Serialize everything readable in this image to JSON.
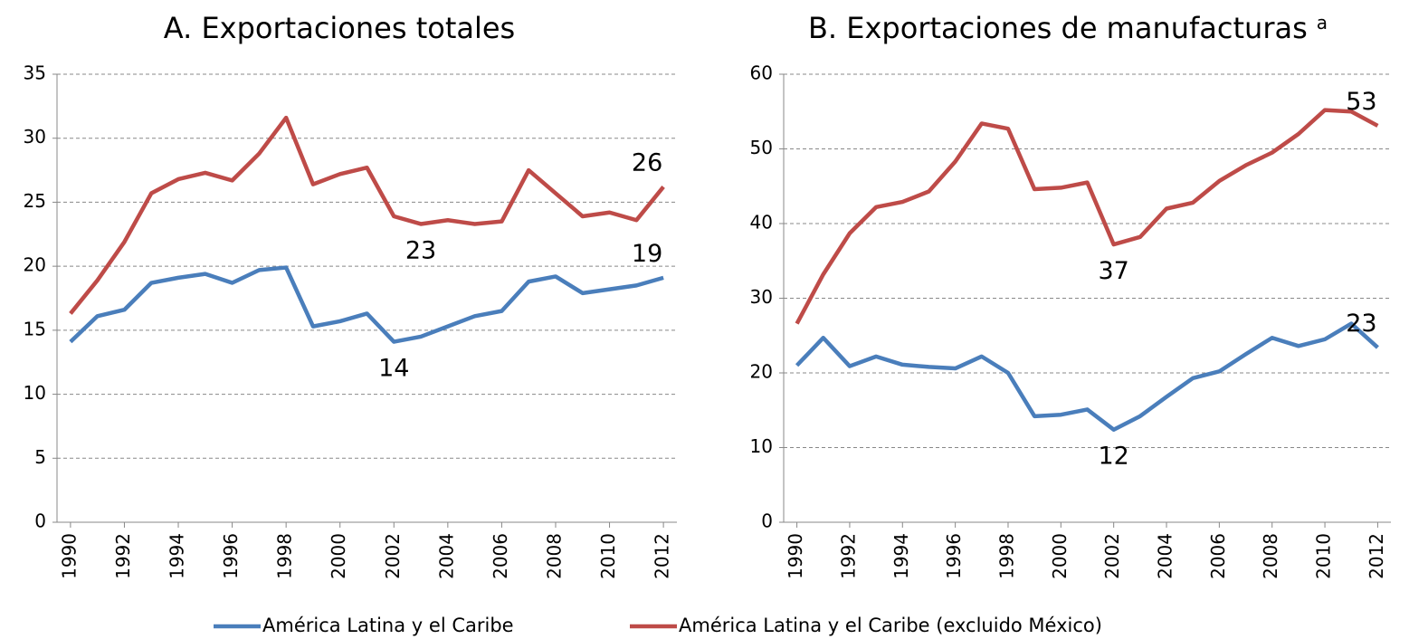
{
  "chart_data": [
    {
      "type": "line",
      "title": "A. Exportaciones totales",
      "x": [
        1990,
        1991,
        1992,
        1993,
        1994,
        1995,
        1996,
        1997,
        1998,
        1999,
        2000,
        2001,
        2002,
        2003,
        2004,
        2005,
        2006,
        2007,
        2008,
        2009,
        2010,
        2011,
        2012
      ],
      "xlim": [
        1989.5,
        2012.5
      ],
      "xticks": [
        1990,
        1992,
        1994,
        1996,
        1998,
        2000,
        2002,
        2004,
        2006,
        2008,
        2010,
        2012
      ],
      "ylim": [
        0,
        35
      ],
      "yticks": [
        0,
        5,
        10,
        15,
        20,
        25,
        30,
        35
      ],
      "grid": true,
      "legend": "bottom",
      "series": [
        {
          "name": "América Latina y el Caribe",
          "color": "#4a7ebb",
          "values": [
            14.1,
            16.1,
            16.6,
            18.7,
            19.1,
            19.4,
            18.7,
            19.7,
            19.9,
            15.3,
            15.7,
            16.3,
            14.1,
            14.5,
            15.3,
            16.1,
            16.5,
            18.8,
            19.2,
            17.9,
            18.2,
            18.5,
            19.1
          ],
          "value_labels": [
            null,
            null,
            null,
            null,
            null,
            null,
            null,
            null,
            null,
            null,
            null,
            null,
            "14",
            null,
            null,
            null,
            null,
            null,
            null,
            null,
            null,
            null,
            "19"
          ]
        },
        {
          "name": "América Latina y el Caribe (excluido México)",
          "color": "#be4b48",
          "values": [
            16.3,
            18.9,
            21.9,
            25.7,
            26.8,
            27.3,
            26.7,
            28.8,
            31.6,
            26.4,
            27.2,
            27.7,
            23.9,
            23.3,
            23.6,
            23.3,
            23.5,
            27.5,
            25.7,
            23.9,
            24.2,
            23.6,
            26.2
          ],
          "value_labels": [
            null,
            null,
            null,
            null,
            null,
            null,
            null,
            null,
            null,
            null,
            null,
            null,
            null,
            "23",
            null,
            null,
            null,
            null,
            null,
            null,
            null,
            null,
            "26"
          ]
        }
      ]
    },
    {
      "type": "line",
      "title": "B. Exportaciones de manufacturas",
      "title_note": "a",
      "x": [
        1990,
        1991,
        1992,
        1993,
        1994,
        1995,
        1996,
        1997,
        1998,
        1999,
        2000,
        2001,
        2002,
        2003,
        2004,
        2005,
        2006,
        2007,
        2008,
        2009,
        2010,
        2011,
        2012
      ],
      "xlim": [
        1989.5,
        2012.5
      ],
      "xticks": [
        1990,
        1992,
        1994,
        1996,
        1998,
        2000,
        2002,
        2004,
        2006,
        2008,
        2010,
        2012
      ],
      "ylim": [
        0,
        60
      ],
      "yticks": [
        0,
        10,
        20,
        30,
        40,
        50,
        60
      ],
      "grid": true,
      "series": [
        {
          "name": "América Latina y el Caribe",
          "color": "#4a7ebb",
          "values": [
            21,
            24.7,
            20.9,
            22.2,
            21.1,
            20.8,
            20.6,
            22.2,
            20,
            14.2,
            14.4,
            15.1,
            12.4,
            14.2,
            16.8,
            19.3,
            20.2,
            22.5,
            24.7,
            23.6,
            24.5,
            26.6,
            23.4
          ],
          "value_labels": [
            null,
            null,
            null,
            null,
            null,
            null,
            null,
            null,
            null,
            null,
            null,
            null,
            "12",
            null,
            null,
            null,
            null,
            null,
            null,
            null,
            null,
            null,
            "23"
          ]
        },
        {
          "name": "América Latina y el Caribe (excluido México)",
          "color": "#be4b48",
          "values": [
            26.6,
            33.2,
            38.7,
            42.2,
            42.9,
            44.3,
            48.3,
            53.4,
            52.7,
            44.6,
            44.8,
            45.5,
            37.2,
            38.2,
            42,
            42.8,
            45.7,
            47.8,
            49.5,
            52,
            55.2,
            55,
            53.1
          ],
          "value_labels": [
            null,
            null,
            null,
            null,
            null,
            null,
            null,
            null,
            null,
            null,
            null,
            null,
            "37",
            null,
            null,
            null,
            null,
            null,
            null,
            null,
            null,
            null,
            "53"
          ]
        }
      ]
    }
  ]
}
